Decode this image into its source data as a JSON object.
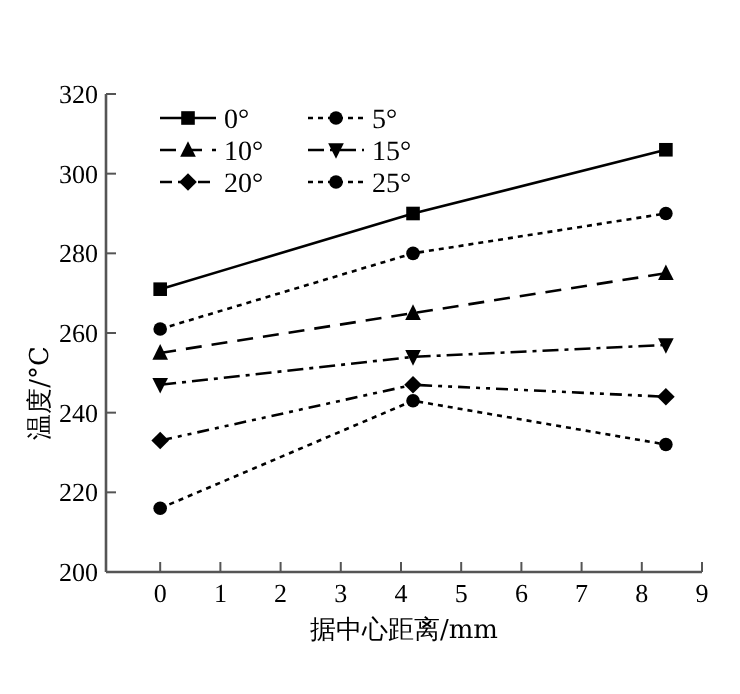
{
  "chart_data": {
    "type": "line",
    "xlabel": "据中心距离/mm",
    "ylabel": "温度/°C",
    "xlim": [
      -0.9,
      9
    ],
    "xticks": [
      0,
      1,
      2,
      3,
      4,
      5,
      6,
      7,
      8,
      9
    ],
    "ylim": [
      200,
      320
    ],
    "yticks": [
      200,
      220,
      240,
      260,
      280,
      300,
      320
    ],
    "grid": false,
    "legend": "top left",
    "series": [
      {
        "name": "0°",
        "color": "#000000",
        "marker": "square",
        "line_style": "solid",
        "x": [
          0,
          4.2,
          8.4
        ],
        "values": [
          271,
          290,
          306
        ]
      },
      {
        "name": "5°",
        "color": "#000000",
        "marker": "circle",
        "line_style": "dotted",
        "x": [
          0,
          4.2,
          8.4
        ],
        "values": [
          261,
          280,
          290
        ]
      },
      {
        "name": "10°",
        "color": "#000000",
        "marker": "triangle",
        "line_style": "dashed",
        "x": [
          0,
          4.2,
          8.4
        ],
        "values": [
          255,
          265,
          275
        ]
      },
      {
        "name": "15°",
        "color": "#000000",
        "marker": "triangle-down",
        "line_style": "dashdot",
        "x": [
          0,
          4.2,
          8.4
        ],
        "values": [
          247,
          254,
          257
        ]
      },
      {
        "name": "20°",
        "color": "#000000",
        "marker": "diamond",
        "line_style": "dashdotdot",
        "x": [
          0,
          4.2,
          8.4
        ],
        "values": [
          233,
          247,
          244
        ]
      },
      {
        "name": "25°",
        "color": "#000000",
        "marker": "circle",
        "line_style": "dotted",
        "x": [
          0,
          4.2,
          8.4
        ],
        "values": [
          216,
          243,
          232
        ]
      }
    ]
  }
}
